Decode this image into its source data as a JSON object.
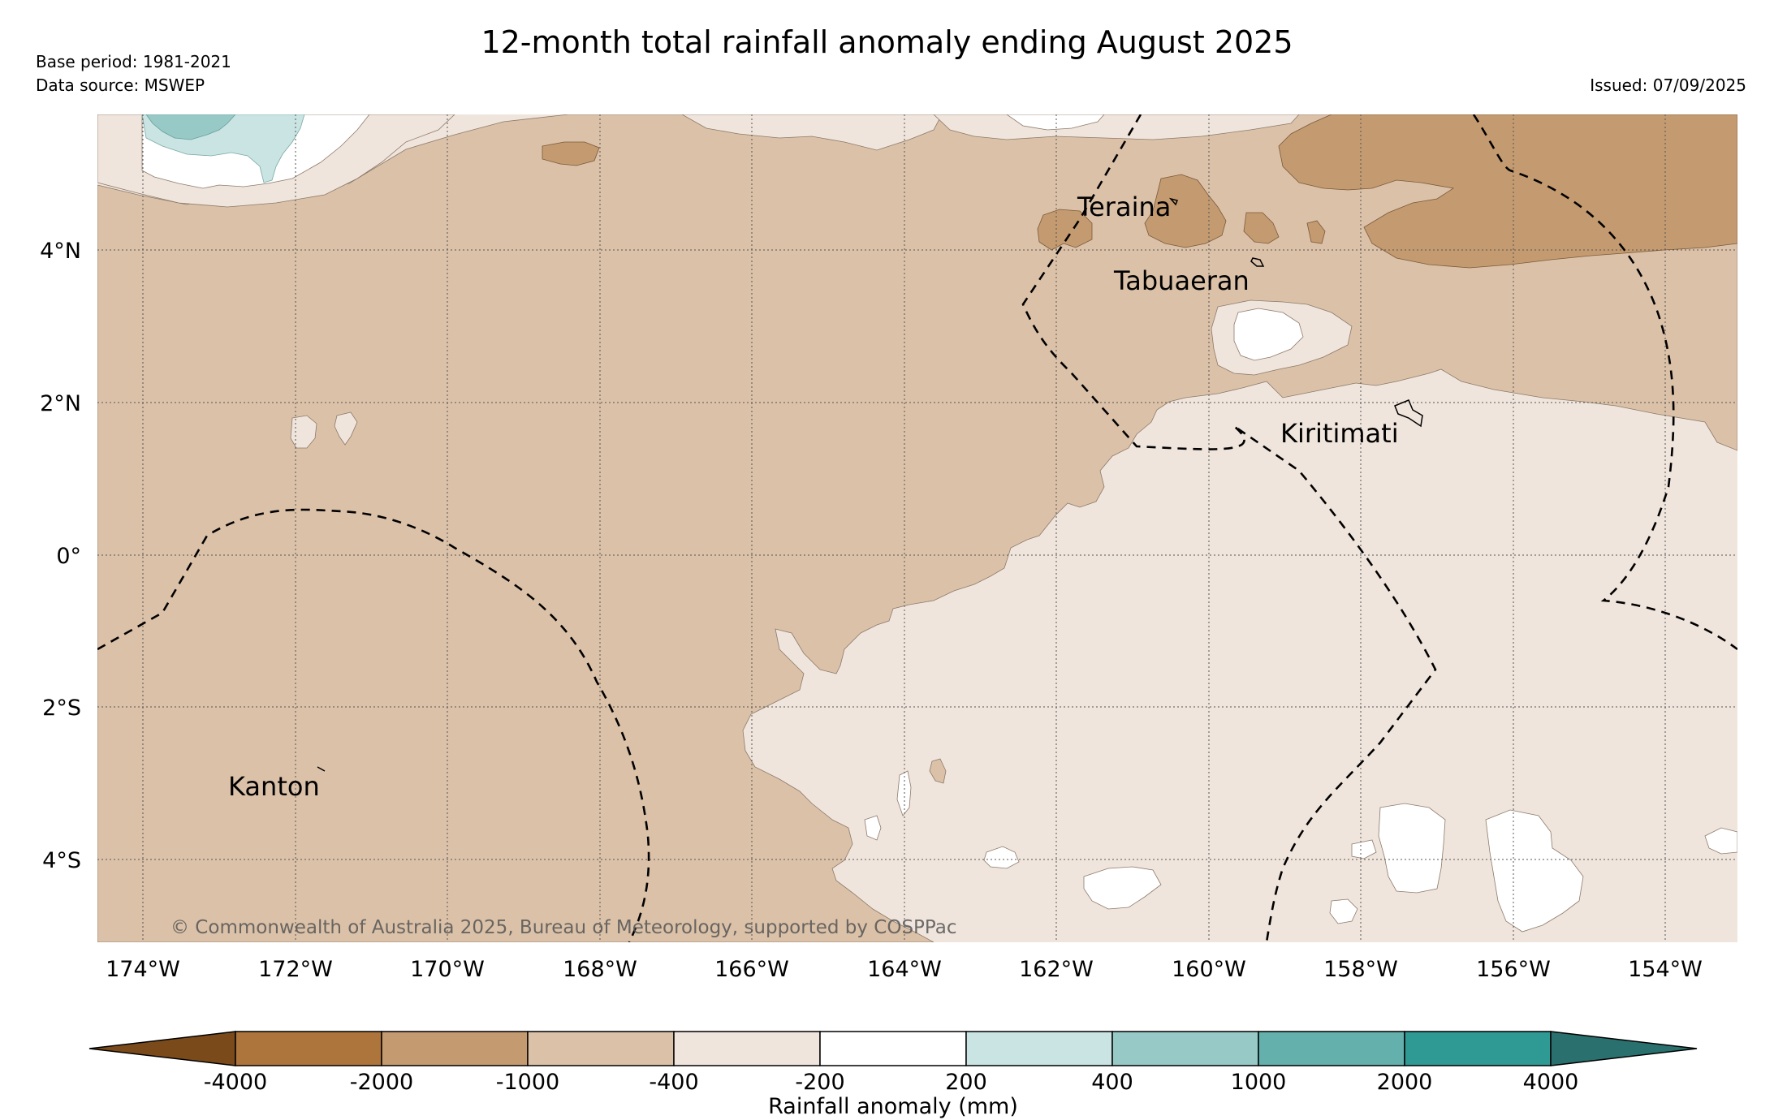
{
  "title": "12-month total rainfall anomaly ending August 2025",
  "base_period": "Base period: 1981-2021",
  "data_source": "Data source: MSWEP",
  "issued": "Issued: 07/09/2025",
  "credit": "© Commonwealth of Australia 2025, Bureau of Meteorology, supported by COSPPac",
  "colors": {
    "c_lt_-4000": "#7a4a1a",
    "c_-4000_-2000": "#ad743c",
    "c_-2000_-1000": "#c49a70",
    "c_-1000_-400": "#dbc1a8",
    "c_-400_-200": "#f0e5dc",
    "c_-200_200": "#ffffff",
    "c_200_400": "#c9e4e2",
    "c_400_1000": "#97c9c6",
    "c_1000_2000": "#63b0ad",
    "c_2000_4000": "#2f9994",
    "c_gt_4000": "#2a706e"
  },
  "map": {
    "longitude_ticks": [
      "174°W",
      "172°W",
      "170°W",
      "168°W",
      "166°W",
      "164°W",
      "162°W",
      "160°W",
      "158°W",
      "156°W",
      "154°W"
    ],
    "latitude_ticks": [
      "4°N",
      "2°N",
      "0°",
      "2°S",
      "4°S"
    ],
    "places": {
      "teraina": "Teraina",
      "tabuaeran": "Tabuaeran",
      "kiritimati": "Kiritimati",
      "kanton": "Kanton"
    }
  },
  "colorbar": {
    "title": "Rainfall anomaly (mm)",
    "labels": [
      "-4000",
      "-2000",
      "-1000",
      "-400",
      "-200",
      "200",
      "400",
      "1000",
      "2000",
      "4000"
    ]
  }
}
